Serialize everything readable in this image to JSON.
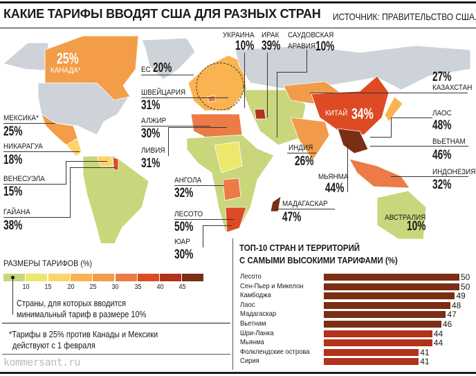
{
  "header": {
    "title": "КАКИЕ ТАРИФЫ ВВОДЯТ США ДЛЯ РАЗНЫХ СТРАН",
    "source": "ИСТОЧНИК: ПРАВИТЕЛЬСТВО США."
  },
  "map_labels": [
    {
      "id": "canada",
      "name": "КАНАДА*",
      "value": "25%"
    },
    {
      "id": "eu",
      "name": "ЕС",
      "value": "20%"
    },
    {
      "id": "switzerland",
      "name": "ШВЕЙЦАРИЯ",
      "value": "31%"
    },
    {
      "id": "algeria",
      "name": "АЛЖИР",
      "value": "30%"
    },
    {
      "id": "libya",
      "name": "ЛИВИЯ",
      "value": "31%"
    },
    {
      "id": "mexico",
      "name": "МЕКСИКА*",
      "value": "25%"
    },
    {
      "id": "nicaragua",
      "name": "НИКАРАГУА",
      "value": "18%"
    },
    {
      "id": "venezuela",
      "name": "ВЕНЕСУЭЛА",
      "value": "15%"
    },
    {
      "id": "guyana",
      "name": "ГАЙАНА",
      "value": "38%"
    },
    {
      "id": "angola",
      "name": "АНГОЛА",
      "value": "32%"
    },
    {
      "id": "lesotho",
      "name": "ЛЕСОТО",
      "value": "50%"
    },
    {
      "id": "sa",
      "name": "ЮАР",
      "value": "30%"
    },
    {
      "id": "ukraine",
      "name": "УКРАИНА",
      "value": "10%"
    },
    {
      "id": "iraq",
      "name": "ИРАК",
      "value": "39%"
    },
    {
      "id": "saudi",
      "name": "САУДОВСКАЯ",
      "name2": "АРАВИЯ",
      "value": "10%"
    },
    {
      "id": "kazakhstan",
      "name": "КАЗАХСТАН",
      "value": "27%"
    },
    {
      "id": "china",
      "name": "КИТАЙ",
      "value": "34%"
    },
    {
      "id": "laos",
      "name": "ЛАОС",
      "value": "48%"
    },
    {
      "id": "vietnam",
      "name": "ВЬЕТНАМ",
      "value": "46%"
    },
    {
      "id": "india",
      "name": "ИНДИЯ",
      "value": "26%"
    },
    {
      "id": "myanmar",
      "name": "МЬЯНМА",
      "value": "44%"
    },
    {
      "id": "indonesia",
      "name": "ИНДОНЕЗИЯ",
      "value": "32%"
    },
    {
      "id": "madagascar",
      "name": "МАДАГАСКАР",
      "value": "47%"
    },
    {
      "id": "australia",
      "name": "АВСТРАЛИЯ",
      "value": "10%"
    }
  ],
  "legend": {
    "title": "РАЗМЕРЫ ТАРИФОВ (%)",
    "ticks": [
      "10",
      "15",
      "20",
      "25",
      "30",
      "35",
      "40",
      "45"
    ],
    "colors": [
      "#c9d67c",
      "#ece86c",
      "#fcd46c",
      "#f9b451",
      "#f29b4a",
      "#ec7b47",
      "#dd4b24",
      "#b2321a",
      "#7a2e14"
    ],
    "no_tariff_color": "#cdd3d8",
    "note": [
      "Страны, для которых вводится",
      "минимальный тариф в размере 10%"
    ]
  },
  "footnote": [
    "*Тарифы в 25% против Канады и Мексики",
    "действуют с 1 февраля"
  ],
  "brand": "kommersant.ru",
  "chart_data": {
    "type": "bar",
    "title": "ТОП-10 СТРАН И ТЕРРИТОРИЙ С САМЫМИ ВЫСОКИМИ ТАРИФАМИ (%)",
    "title_lines": [
      "ТОП-10 СТРАН И ТЕРРИТОРИЙ",
      "С САМЫМИ ВЫСОКИМИ ТАРИФАМИ (%)"
    ],
    "orientation": "horizontal",
    "categories": [
      "Лесото",
      "Сен-Пьер и Микелон",
      "Камбоджа",
      "Лаос",
      "Мадагаскар",
      "Вьетнам",
      "Шри-Ланка",
      "Мьянма",
      "Фолклендские острова",
      "Сирия"
    ],
    "values": [
      50,
      50,
      49,
      48,
      47,
      46,
      44,
      44,
      41,
      41
    ],
    "xlim": [
      20,
      50
    ],
    "bar_colors": {
      "45-50": "#7a2e14",
      "40-45": "#b2321a"
    }
  }
}
